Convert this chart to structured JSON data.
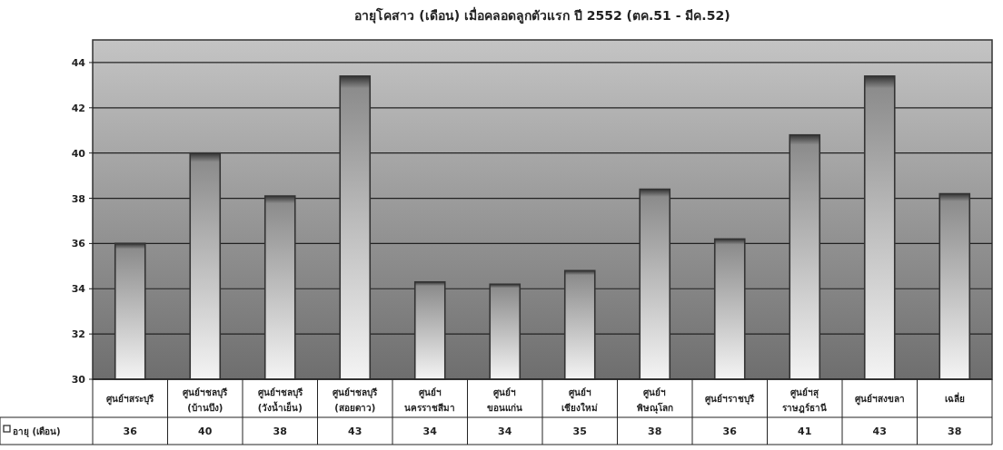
{
  "chart_data": {
    "type": "bar",
    "title": "อายุโคสาว (เดือน) เมื่อคลอดลูกตัวแรก  ปี 2552 (ตค.51 - มีค.52)",
    "categories": [
      "ศูนย์ฯสระบุรี",
      "ศูนย์ฯชลบุรี (บ้านบึง)",
      "ศูนย์ฯชลบุรี (วังน้ำเย็น)",
      "ศูนย์ฯชลบุรี (สอยดาว)",
      "ศูนย์ฯ นครราชสีมา",
      "ศูนย์ฯ ขอนแก่น",
      "ศูนย์ฯ เชียงใหม่",
      "ศูนย์ฯ พิษณุโลก",
      "ศูนย์ฯราชบุรี",
      "ศูนย์ฯสุ ราษฎร์ธานี",
      "ศูนย์ฯสงขลา",
      "เฉลี่ย"
    ],
    "series": [
      {
        "name": "อายุ (เดือน)",
        "color": "#333333",
        "values": [
          36.0,
          40.0,
          38.1,
          43.4,
          34.3,
          34.2,
          34.8,
          38.4,
          36.2,
          40.8,
          43.4,
          38.2
        ],
        "value_labels": [
          "36",
          "40",
          "38",
          "43",
          "34",
          "34",
          "35",
          "38",
          "36",
          "41",
          "43",
          "38"
        ]
      }
    ],
    "ylim": [
      30,
      45
    ],
    "yticks": [
      30,
      32,
      34,
      36,
      38,
      40,
      42,
      44
    ],
    "grid": "y",
    "legend": "bottom left"
  }
}
